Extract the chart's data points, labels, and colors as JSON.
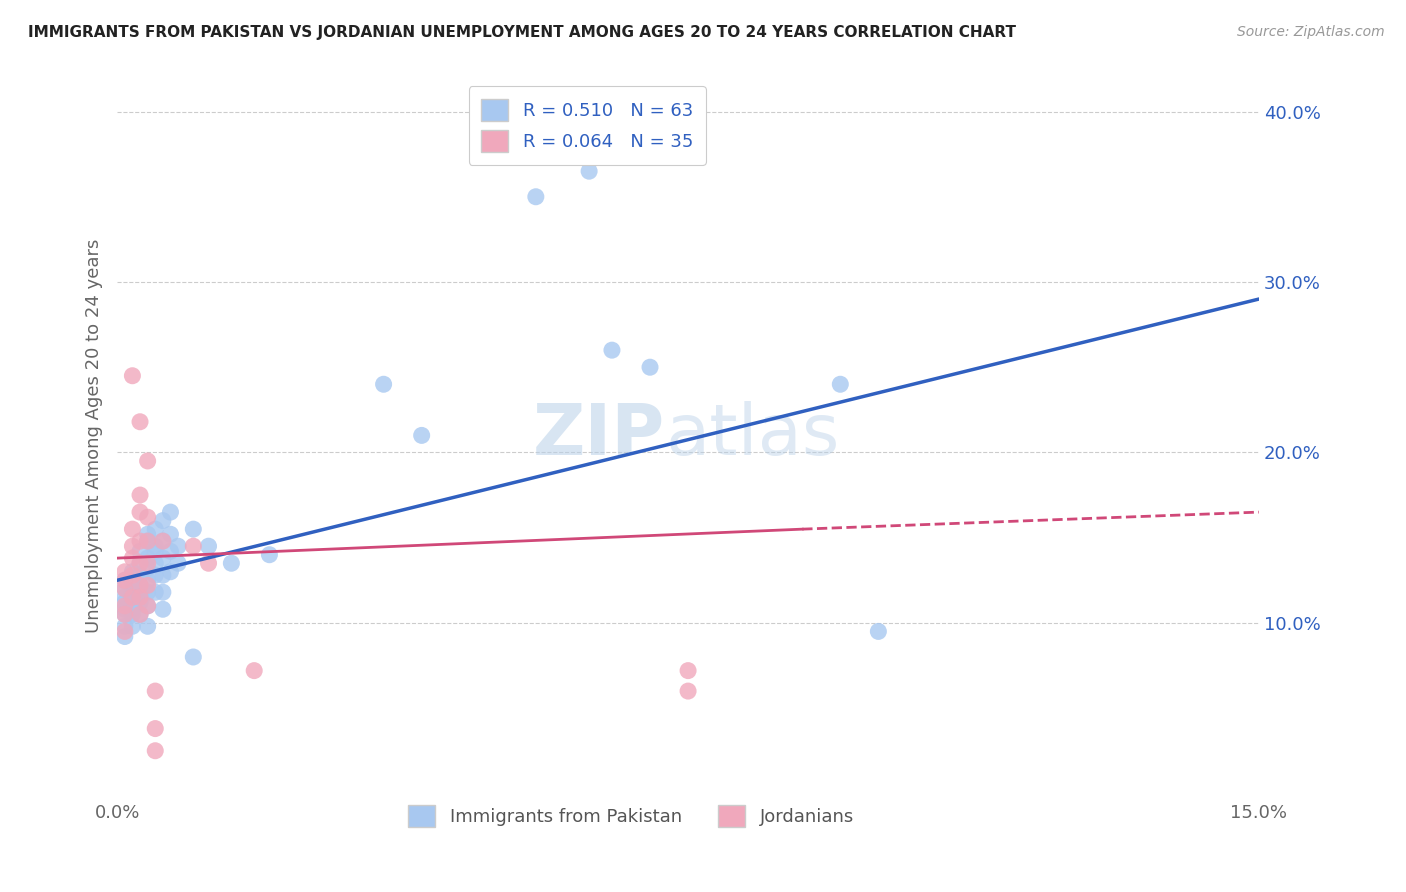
{
  "title": "IMMIGRANTS FROM PAKISTAN VS JORDANIAN UNEMPLOYMENT AMONG AGES 20 TO 24 YEARS CORRELATION CHART",
  "source": "Source: ZipAtlas.com",
  "ylabel": "Unemployment Among Ages 20 to 24 years",
  "xmin": 0.0,
  "xmax": 0.15,
  "ymin": 0.0,
  "ymax": 0.42,
  "y_ticks": [
    0.1,
    0.2,
    0.3,
    0.4
  ],
  "y_tick_labels": [
    "10.0%",
    "20.0%",
    "30.0%",
    "40.0%"
  ],
  "blue_R": 0.51,
  "blue_N": 63,
  "pink_R": 0.064,
  "pink_N": 35,
  "blue_color": "#a8c8f0",
  "pink_color": "#f0a8bc",
  "blue_line_color": "#3060c0",
  "pink_line_color": "#d04878",
  "watermark_color": "#b8d0e8",
  "blue_scatter": [
    [
      0.001,
      0.125
    ],
    [
      0.001,
      0.115
    ],
    [
      0.001,
      0.108
    ],
    [
      0.001,
      0.098
    ],
    [
      0.001,
      0.112
    ],
    [
      0.001,
      0.12
    ],
    [
      0.001,
      0.092
    ],
    [
      0.001,
      0.105
    ],
    [
      0.002,
      0.118
    ],
    [
      0.002,
      0.13
    ],
    [
      0.002,
      0.11
    ],
    [
      0.002,
      0.105
    ],
    [
      0.002,
      0.098
    ],
    [
      0.002,
      0.125
    ],
    [
      0.002,
      0.115
    ],
    [
      0.002,
      0.108
    ],
    [
      0.003,
      0.122
    ],
    [
      0.003,
      0.135
    ],
    [
      0.003,
      0.112
    ],
    [
      0.003,
      0.118
    ],
    [
      0.003,
      0.128
    ],
    [
      0.003,
      0.115
    ],
    [
      0.003,
      0.142
    ],
    [
      0.003,
      0.105
    ],
    [
      0.004,
      0.148
    ],
    [
      0.004,
      0.138
    ],
    [
      0.004,
      0.125
    ],
    [
      0.004,
      0.132
    ],
    [
      0.004,
      0.118
    ],
    [
      0.004,
      0.11
    ],
    [
      0.004,
      0.152
    ],
    [
      0.004,
      0.098
    ],
    [
      0.005,
      0.155
    ],
    [
      0.005,
      0.145
    ],
    [
      0.005,
      0.135
    ],
    [
      0.005,
      0.128
    ],
    [
      0.005,
      0.118
    ],
    [
      0.005,
      0.142
    ],
    [
      0.006,
      0.16
    ],
    [
      0.006,
      0.148
    ],
    [
      0.006,
      0.138
    ],
    [
      0.006,
      0.128
    ],
    [
      0.006,
      0.118
    ],
    [
      0.006,
      0.108
    ],
    [
      0.007,
      0.165
    ],
    [
      0.007,
      0.152
    ],
    [
      0.007,
      0.142
    ],
    [
      0.007,
      0.13
    ],
    [
      0.008,
      0.145
    ],
    [
      0.008,
      0.135
    ],
    [
      0.01,
      0.155
    ],
    [
      0.01,
      0.08
    ],
    [
      0.012,
      0.145
    ],
    [
      0.015,
      0.135
    ],
    [
      0.02,
      0.14
    ],
    [
      0.035,
      0.24
    ],
    [
      0.04,
      0.21
    ],
    [
      0.055,
      0.35
    ],
    [
      0.062,
      0.365
    ],
    [
      0.065,
      0.26
    ],
    [
      0.07,
      0.25
    ],
    [
      0.095,
      0.24
    ],
    [
      0.1,
      0.095
    ]
  ],
  "pink_scatter": [
    [
      0.001,
      0.095
    ],
    [
      0.001,
      0.12
    ],
    [
      0.001,
      0.13
    ],
    [
      0.001,
      0.125
    ],
    [
      0.001,
      0.11
    ],
    [
      0.001,
      0.105
    ],
    [
      0.002,
      0.155
    ],
    [
      0.002,
      0.145
    ],
    [
      0.002,
      0.138
    ],
    [
      0.002,
      0.128
    ],
    [
      0.002,
      0.115
    ],
    [
      0.002,
      0.245
    ],
    [
      0.003,
      0.175
    ],
    [
      0.003,
      0.165
    ],
    [
      0.003,
      0.148
    ],
    [
      0.003,
      0.135
    ],
    [
      0.003,
      0.122
    ],
    [
      0.003,
      0.115
    ],
    [
      0.003,
      0.105
    ],
    [
      0.003,
      0.218
    ],
    [
      0.004,
      0.195
    ],
    [
      0.004,
      0.162
    ],
    [
      0.004,
      0.148
    ],
    [
      0.004,
      0.135
    ],
    [
      0.004,
      0.122
    ],
    [
      0.004,
      0.11
    ],
    [
      0.005,
      0.06
    ],
    [
      0.005,
      0.038
    ],
    [
      0.005,
      0.025
    ],
    [
      0.006,
      0.148
    ],
    [
      0.01,
      0.145
    ],
    [
      0.012,
      0.135
    ],
    [
      0.018,
      0.072
    ],
    [
      0.075,
      0.072
    ],
    [
      0.075,
      0.06
    ]
  ]
}
